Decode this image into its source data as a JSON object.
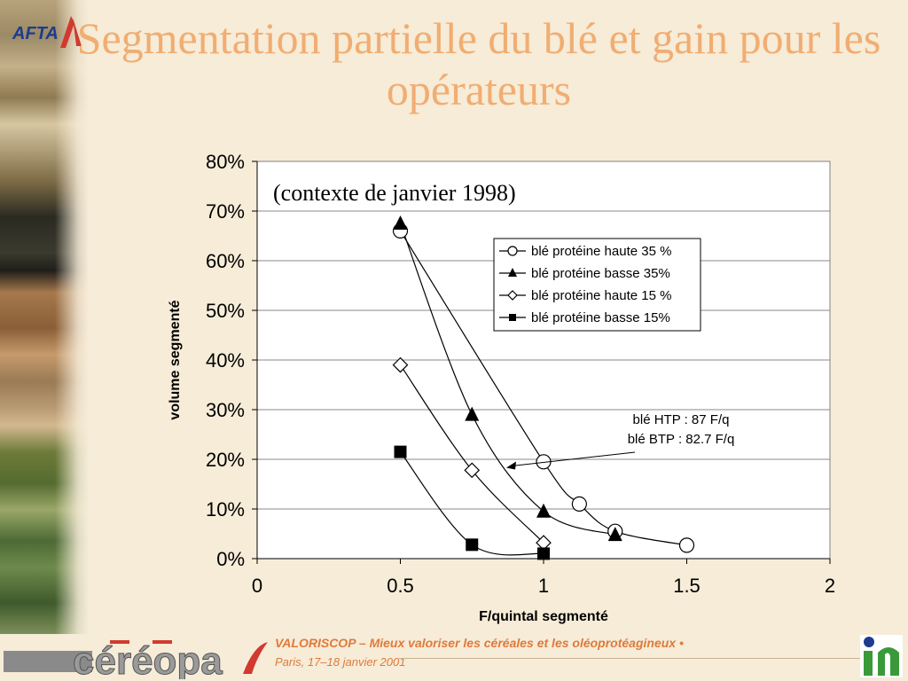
{
  "slide": {
    "title": "Segmentation partielle du blé et gain pour les opérateurs",
    "logo_text": "AFTA"
  },
  "footer": {
    "brand": "VALORISCOP",
    "separator": "–",
    "tagline": "Mieux valoriser les céréales et les oléoprotéagineux •",
    "place_date": "Paris, 17–18 janvier 2001",
    "cereopa_text": "céréopa"
  },
  "colors": {
    "title": "#f1ad72",
    "footer_text": "#e07a3a",
    "background": "#f6ecd8"
  },
  "chart_data": {
    "type": "line",
    "subtitle": "(contexte de janvier 1998)",
    "xlabel": "F/quintal segmenté",
    "ylabel": "volume segmenté",
    "xlim": [
      0,
      2
    ],
    "ylim": [
      0,
      0.8
    ],
    "x_ticks": [
      "0",
      "0.5",
      "1",
      "1.5",
      "2"
    ],
    "y_ticks": [
      "0%",
      "10%",
      "20%",
      "30%",
      "40%",
      "50%",
      "60%",
      "70%",
      "80%"
    ],
    "grid": "horizontal",
    "legend_position": "top-right",
    "series": [
      {
        "name": "blé protéine haute 35 %",
        "marker": "circle-open",
        "points": [
          [
            0.5,
            0.66
          ],
          [
            1.0,
            0.195
          ],
          [
            1.125,
            0.11
          ],
          [
            1.25,
            0.055
          ],
          [
            1.5,
            0.027
          ]
        ]
      },
      {
        "name": "blé protéine basse 35%",
        "marker": "triangle-filled",
        "points": [
          [
            0.5,
            0.675
          ],
          [
            0.75,
            0.29
          ],
          [
            1.0,
            0.095
          ],
          [
            1.25,
            0.048
          ]
        ]
      },
      {
        "name": "blé protéine haute 15 %",
        "marker": "diamond-open",
        "points": [
          [
            0.5,
            0.39
          ],
          [
            0.75,
            0.178
          ],
          [
            1.0,
            0.032
          ]
        ]
      },
      {
        "name": "blé protéine basse 15%",
        "marker": "square-filled",
        "points": [
          [
            0.5,
            0.215
          ],
          [
            0.75,
            0.028
          ],
          [
            1.0,
            0.01
          ]
        ]
      }
    ],
    "annotation": {
      "lines": [
        "blé HTP : 87 F/q",
        "blé BTP : 82.7 F/q"
      ],
      "arrow_to": [
        0.87,
        0.183
      ]
    }
  }
}
